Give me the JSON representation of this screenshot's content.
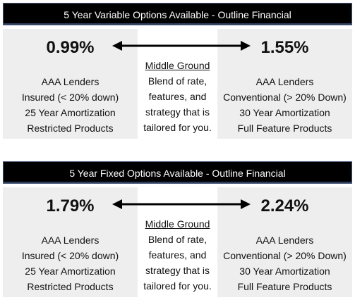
{
  "panels": [
    {
      "header": "5 Year Variable Options Available - Outline Financial",
      "left_rate": "0.99%",
      "right_rate": "1.55%",
      "left_lines": [
        "AAA Lenders",
        "Insured (< 20% down)",
        "25 Year Amortization",
        "Restricted Products"
      ],
      "middle_title": "Middle Ground",
      "middle_lines": [
        "Blend of rate,",
        "features, and",
        "strategy that is",
        "tailored for you."
      ],
      "right_lines": [
        "AAA Lenders",
        "Conventional (> 20% Down)",
        "30 Year Amortization",
        "Full Feature Products"
      ]
    },
    {
      "header": "5 Year Fixed Options Available - Outline Financial",
      "left_rate": "1.79%",
      "right_rate": "2.24%",
      "left_lines": [
        "AAA Lenders",
        "Insured (< 20% down)",
        "25 Year Amortization",
        "Restricted Products"
      ],
      "middle_title": "Middle Ground",
      "middle_lines": [
        "Blend of rate,",
        "features, and",
        "strategy that is",
        "tailored for you."
      ],
      "right_lines": [
        "AAA Lenders",
        "Conventional (> 20% Down)",
        "30 Year Amortization",
        "Full Feature Products"
      ]
    }
  ],
  "colors": {
    "header_bg": "#000000",
    "header_text": "#ffffff",
    "side_bg": "#eeeeee",
    "arrow": "#000000"
  },
  "icons": {
    "arrow": "double-headed-arrow-icon"
  }
}
